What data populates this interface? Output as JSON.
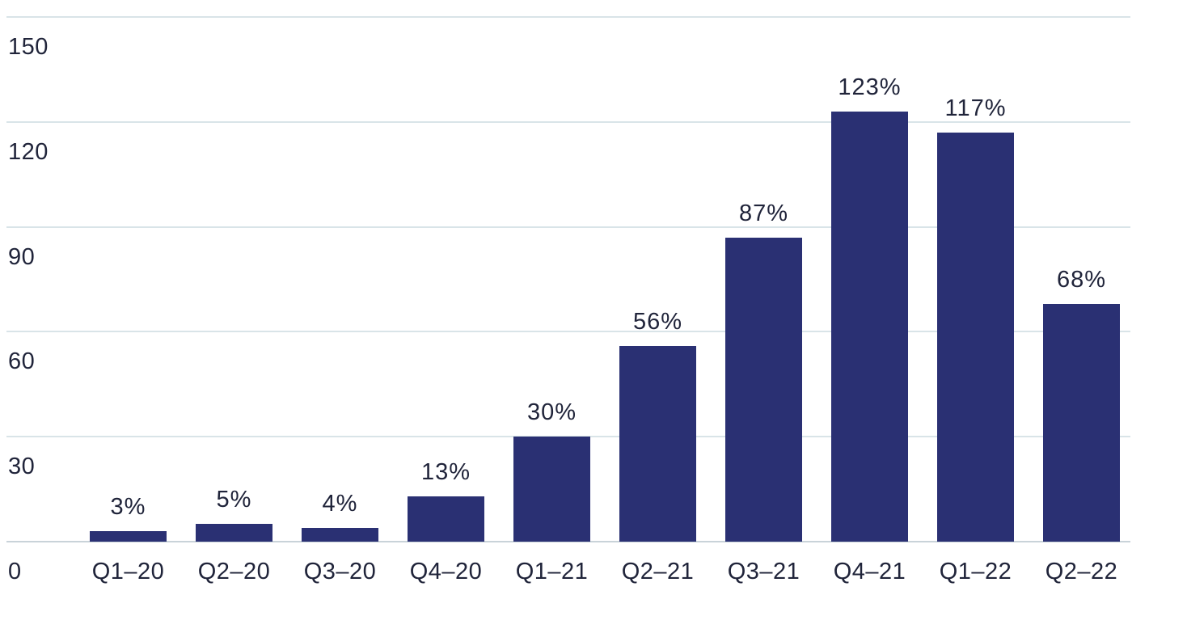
{
  "chart_data": {
    "type": "bar",
    "title": "",
    "xlabel": "",
    "ylabel": "",
    "categories": [
      "Q1–20",
      "Q2–20",
      "Q3–20",
      "Q4–20",
      "Q1–21",
      "Q2–21",
      "Q3–21",
      "Q4–21",
      "Q1–22",
      "Q2–22"
    ],
    "values": [
      3,
      5,
      4,
      13,
      30,
      56,
      87,
      123,
      117,
      68
    ],
    "value_labels": [
      "3%",
      "5%",
      "4%",
      "13%",
      "30%",
      "56%",
      "87%",
      "123%",
      "117%",
      "68%"
    ],
    "ylim": [
      0,
      150
    ],
    "yticks": [
      0,
      30,
      60,
      90,
      120,
      150
    ],
    "ytick_labels": [
      "0",
      "30",
      "60",
      "90",
      "120",
      "150"
    ],
    "grid": "horizontal",
    "legend": false,
    "colors": {
      "bar": "#2A3073",
      "text": "#20243A",
      "gridline": "#D9E4E8",
      "axis_line": "#C9D3D9",
      "background": "#FFFFFF"
    }
  }
}
